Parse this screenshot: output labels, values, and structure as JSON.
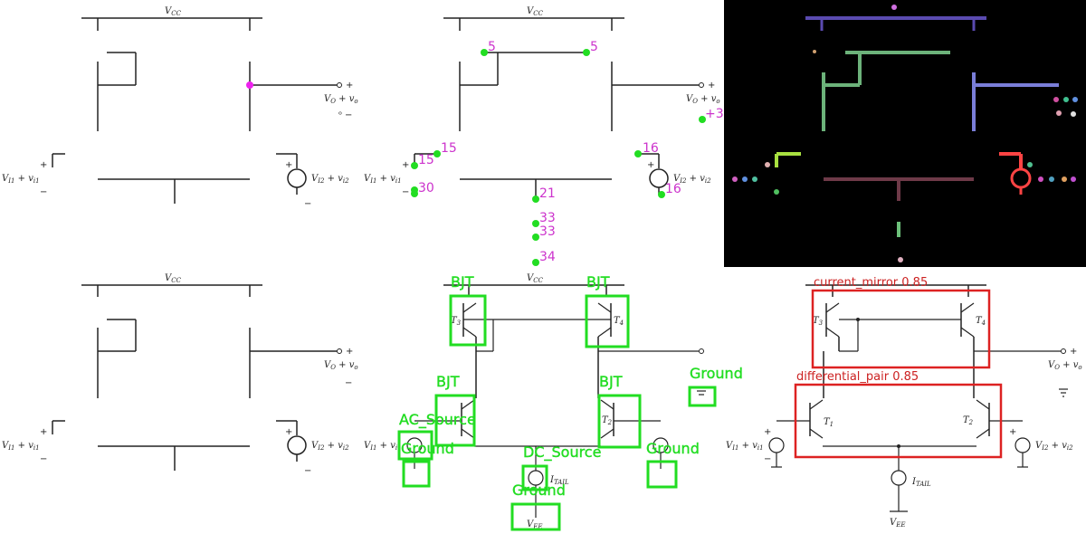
{
  "labels": {
    "vcc": "V",
    "vcc_sub": "CC",
    "vo": "V",
    "vo_sub": "O",
    "vo_rest": " + v",
    "vo_rest_sub": "o",
    "vi1": "V",
    "vi1_sub": "I1",
    "vi1_rest": " + v",
    "vi1_rest_sub": "i1",
    "vi2": "V",
    "vi2_sub": "I2",
    "vi2_rest": " + v",
    "vi2_rest_sub": "i2",
    "itail": "I",
    "itail_sub": "TAIL",
    "vee": "V",
    "vee_sub": "EE",
    "t1": "T",
    "t1_sub": "1",
    "t2": "T",
    "t2_sub": "2",
    "t3": "T",
    "t3_sub": "3",
    "t4": "T",
    "t4_sub": "4",
    "plus": "+",
    "minus": "−"
  },
  "node_labels": [
    "5",
    "5",
    "+3",
    "15",
    "15",
    "16",
    "16",
    "30",
    "21",
    "33",
    "33",
    "34"
  ],
  "detections": {
    "components": [
      "BJT",
      "BJT",
      "BJT",
      "BJT",
      "AC_Source",
      "Ground",
      "DC_Source",
      "Ground",
      "Ground",
      "Ground"
    ],
    "subcircuits": [
      "current_mirror 0.85",
      "differential_pair 0.85"
    ]
  },
  "colors": {
    "node_text": "#cc33cc",
    "node_dot": "#22dd22",
    "component_box": "#22dd22",
    "subcircuit_box": "#dd2222",
    "segmentation_bg": "#000000"
  }
}
